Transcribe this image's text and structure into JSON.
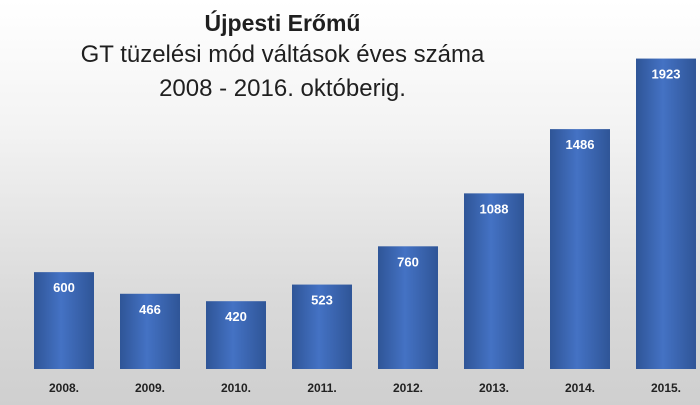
{
  "chart_data": {
    "type": "bar",
    "title": "Újpesti Erőmű",
    "subtitle_lines": [
      "GT tüzelési mód váltások éves száma",
      "2008 - 2016. októberig."
    ],
    "categories": [
      "2008.",
      "2009.",
      "2010.",
      "2011.",
      "2012.",
      "2013.",
      "2014.",
      "2015."
    ],
    "values": [
      600,
      466,
      420,
      523,
      760,
      1088,
      1486,
      1923
    ],
    "data_labels": [
      "600",
      "466",
      "420",
      "523",
      "760",
      "1088",
      "1486",
      "1923"
    ],
    "xlabel": "",
    "ylabel": "",
    "ylim": [
      0,
      2100
    ],
    "grid": false,
    "bar_color": "#4472c4",
    "bar_color_dark": "#2f5597"
  }
}
